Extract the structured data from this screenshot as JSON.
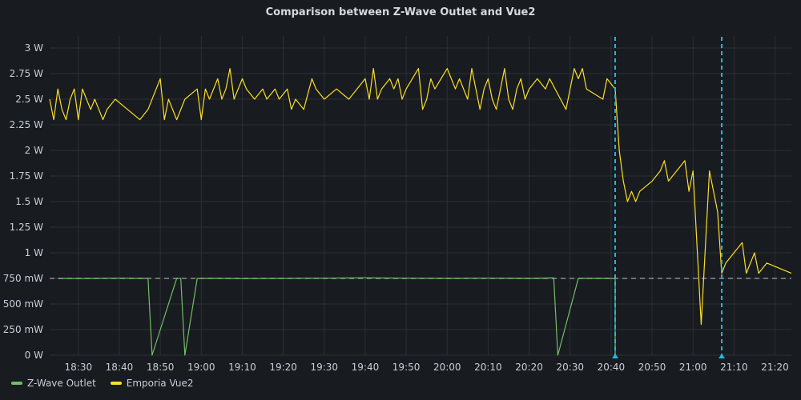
{
  "panel": {
    "title": "Comparison between Z-Wave Outlet and Vue2"
  },
  "colors": {
    "zwave": "#73bf69",
    "emporia": "#fade2a",
    "annotation": "#1fb8e0",
    "threshold": "#8e8e8e",
    "grid": "#2c3035",
    "background": "#181b1f"
  },
  "chart_data": {
    "type": "line",
    "title": "Comparison between Z-Wave Outlet and Vue2",
    "xlabel": "",
    "ylabel": "",
    "x_unit": "time (HH:MM)",
    "y_unit": "W",
    "xlim": [
      "18:23",
      "21:24"
    ],
    "ylim": [
      0,
      3
    ],
    "grid": true,
    "legend_position": "bottom-left",
    "y_ticks": [
      {
        "value": 0,
        "label": "0 W"
      },
      {
        "value": 0.25,
        "label": "250 mW"
      },
      {
        "value": 0.5,
        "label": "500 mW"
      },
      {
        "value": 0.75,
        "label": "750 mW"
      },
      {
        "value": 1.0,
        "label": "1 W"
      },
      {
        "value": 1.25,
        "label": "1.25 W"
      },
      {
        "value": 1.5,
        "label": "1.5 W"
      },
      {
        "value": 1.75,
        "label": "1.75 W"
      },
      {
        "value": 2.0,
        "label": "2 W"
      },
      {
        "value": 2.25,
        "label": "2.25 W"
      },
      {
        "value": 2.5,
        "label": "2.5 W"
      },
      {
        "value": 2.75,
        "label": "2.75 W"
      },
      {
        "value": 3.0,
        "label": "3 W"
      }
    ],
    "x_ticks": [
      "18:30",
      "18:40",
      "18:50",
      "19:00",
      "19:10",
      "19:20",
      "19:30",
      "19:40",
      "19:50",
      "20:00",
      "20:10",
      "20:20",
      "20:30",
      "20:40",
      "20:50",
      "21:00",
      "21:10",
      "21:20"
    ],
    "threshold": 0.75,
    "annotations": [
      "20:41:00",
      "21:07:00"
    ],
    "series": [
      {
        "name": "Z-Wave Outlet",
        "color": "#73bf69",
        "points": [
          [
            "18:25:00",
            0.75
          ],
          [
            "18:30:00",
            0.748
          ],
          [
            "18:35:00",
            0.75
          ],
          [
            "18:40:00",
            0.752
          ],
          [
            "18:45:00",
            0.75
          ],
          [
            "18:47:00",
            0.75
          ],
          [
            "18:48:00",
            0.0
          ],
          [
            "18:54:00",
            0.75
          ],
          [
            "18:55:00",
            0.75
          ],
          [
            "18:56:00",
            0.0
          ],
          [
            "18:59:00",
            0.75
          ],
          [
            "19:05:00",
            0.75
          ],
          [
            "19:10:00",
            0.748
          ],
          [
            "19:20:00",
            0.75
          ],
          [
            "19:30:00",
            0.752
          ],
          [
            "19:40:00",
            0.756
          ],
          [
            "19:50:00",
            0.752
          ],
          [
            "20:00:00",
            0.75
          ],
          [
            "20:10:00",
            0.752
          ],
          [
            "20:20:00",
            0.75
          ],
          [
            "20:26:00",
            0.755
          ],
          [
            "20:27:00",
            0.0
          ],
          [
            "20:32:00",
            0.75
          ],
          [
            "20:40:00",
            0.75
          ],
          [
            "20:41:00",
            0.75
          ],
          [
            "20:41:00",
            0.0
          ]
        ]
      },
      {
        "name": "Emporia Vue2",
        "color": "#fade2a",
        "points": [
          [
            "18:23:00",
            2.5
          ],
          [
            "18:24:00",
            2.3
          ],
          [
            "18:25:00",
            2.6
          ],
          [
            "18:26:00",
            2.4
          ],
          [
            "18:27:00",
            2.3
          ],
          [
            "18:28:00",
            2.5
          ],
          [
            "18:29:00",
            2.6
          ],
          [
            "18:30:00",
            2.3
          ],
          [
            "18:31:00",
            2.6
          ],
          [
            "18:32:00",
            2.5
          ],
          [
            "18:33:00",
            2.4
          ],
          [
            "18:34:00",
            2.5
          ],
          [
            "18:36:00",
            2.3
          ],
          [
            "18:37:00",
            2.4
          ],
          [
            "18:39:00",
            2.5
          ],
          [
            "18:42:00",
            2.4
          ],
          [
            "18:45:00",
            2.3
          ],
          [
            "18:47:00",
            2.4
          ],
          [
            "18:50:00",
            2.7
          ],
          [
            "18:51:00",
            2.3
          ],
          [
            "18:52:00",
            2.5
          ],
          [
            "18:54:00",
            2.3
          ],
          [
            "18:56:00",
            2.5
          ],
          [
            "18:59:00",
            2.6
          ],
          [
            "19:00:00",
            2.3
          ],
          [
            "19:01:00",
            2.6
          ],
          [
            "19:02:00",
            2.5
          ],
          [
            "19:04:00",
            2.7
          ],
          [
            "19:05:00",
            2.5
          ],
          [
            "19:06:00",
            2.6
          ],
          [
            "19:07:00",
            2.8
          ],
          [
            "19:08:00",
            2.5
          ],
          [
            "19:10:00",
            2.7
          ],
          [
            "19:11:00",
            2.6
          ],
          [
            "19:13:00",
            2.5
          ],
          [
            "19:15:00",
            2.6
          ],
          [
            "19:16:00",
            2.5
          ],
          [
            "19:18:00",
            2.6
          ],
          [
            "19:19:00",
            2.5
          ],
          [
            "19:21:00",
            2.6
          ],
          [
            "19:22:00",
            2.4
          ],
          [
            "19:23:00",
            2.5
          ],
          [
            "19:25:00",
            2.4
          ],
          [
            "19:27:00",
            2.7
          ],
          [
            "19:28:00",
            2.6
          ],
          [
            "19:30:00",
            2.5
          ],
          [
            "19:33:00",
            2.6
          ],
          [
            "19:36:00",
            2.5
          ],
          [
            "19:38:00",
            2.6
          ],
          [
            "19:40:00",
            2.7
          ],
          [
            "19:41:00",
            2.5
          ],
          [
            "19:42:00",
            2.8
          ],
          [
            "19:43:00",
            2.5
          ],
          [
            "19:44:00",
            2.6
          ],
          [
            "19:46:00",
            2.7
          ],
          [
            "19:47:00",
            2.6
          ],
          [
            "19:48:00",
            2.7
          ],
          [
            "19:49:00",
            2.5
          ],
          [
            "19:50:00",
            2.6
          ],
          [
            "19:53:00",
            2.8
          ],
          [
            "19:54:00",
            2.4
          ],
          [
            "19:55:00",
            2.5
          ],
          [
            "19:56:00",
            2.7
          ],
          [
            "19:57:00",
            2.6
          ],
          [
            "20:00:00",
            2.8
          ],
          [
            "20:01:00",
            2.7
          ],
          [
            "20:02:00",
            2.6
          ],
          [
            "20:03:00",
            2.7
          ],
          [
            "20:05:00",
            2.5
          ],
          [
            "20:06:00",
            2.8
          ],
          [
            "20:07:00",
            2.6
          ],
          [
            "20:08:00",
            2.4
          ],
          [
            "20:09:00",
            2.6
          ],
          [
            "20:10:00",
            2.7
          ],
          [
            "20:11:00",
            2.5
          ],
          [
            "20:12:00",
            2.4
          ],
          [
            "20:13:00",
            2.6
          ],
          [
            "20:14:00",
            2.8
          ],
          [
            "20:15:00",
            2.5
          ],
          [
            "20:16:00",
            2.4
          ],
          [
            "20:17:00",
            2.6
          ],
          [
            "20:18:00",
            2.7
          ],
          [
            "20:19:00",
            2.5
          ],
          [
            "20:20:00",
            2.6
          ],
          [
            "20:22:00",
            2.7
          ],
          [
            "20:24:00",
            2.6
          ],
          [
            "20:25:00",
            2.7
          ],
          [
            "20:29:00",
            2.4
          ],
          [
            "20:31:00",
            2.8
          ],
          [
            "20:32:00",
            2.7
          ],
          [
            "20:33:00",
            2.8
          ],
          [
            "20:34:00",
            2.6
          ],
          [
            "20:38:00",
            2.5
          ],
          [
            "20:39:00",
            2.7
          ],
          [
            "20:41:00",
            2.6
          ],
          [
            "20:42:00",
            2.0
          ],
          [
            "20:43:00",
            1.7
          ],
          [
            "20:44:00",
            1.5
          ],
          [
            "20:45:00",
            1.6
          ],
          [
            "20:46:00",
            1.5
          ],
          [
            "20:47:00",
            1.6
          ],
          [
            "20:50:00",
            1.7
          ],
          [
            "20:52:00",
            1.8
          ],
          [
            "20:53:00",
            1.9
          ],
          [
            "20:54:00",
            1.7
          ],
          [
            "20:56:00",
            1.8
          ],
          [
            "20:58:00",
            1.9
          ],
          [
            "20:59:00",
            1.6
          ],
          [
            "21:00:00",
            1.8
          ],
          [
            "21:02:00",
            0.3
          ],
          [
            "21:04:00",
            1.8
          ],
          [
            "21:05:00",
            1.6
          ],
          [
            "21:06:00",
            1.4
          ],
          [
            "21:07:00",
            0.8
          ],
          [
            "21:08:00",
            0.9
          ],
          [
            "21:12:00",
            1.1
          ],
          [
            "21:13:00",
            0.8
          ],
          [
            "21:15:00",
            1.0
          ],
          [
            "21:16:00",
            0.8
          ],
          [
            "21:18:00",
            0.9
          ],
          [
            "21:24:00",
            0.8
          ]
        ]
      }
    ]
  },
  "legend": {
    "items": [
      {
        "name": "Z-Wave Outlet",
        "color": "#73bf69"
      },
      {
        "name": "Emporia Vue2",
        "color": "#fade2a"
      }
    ]
  }
}
